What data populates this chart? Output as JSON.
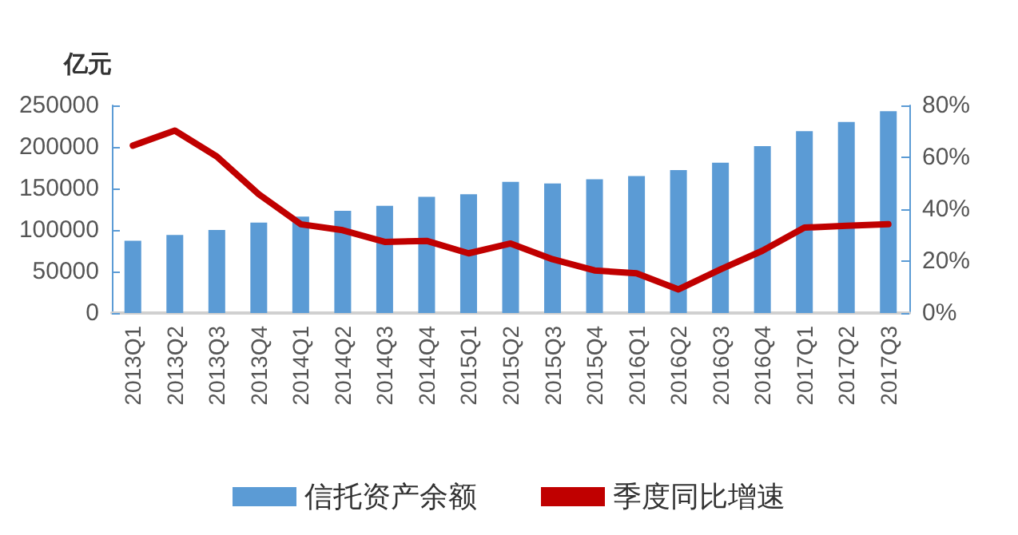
{
  "chart_data": {
    "type": "bar",
    "ylabel": "亿元",
    "categories": [
      "2013Q1",
      "2013Q2",
      "2013Q3",
      "2013Q4",
      "2014Q1",
      "2014Q2",
      "2014Q3",
      "2014Q4",
      "2015Q1",
      "2015Q2",
      "2015Q3",
      "2015Q4",
      "2016Q1",
      "2016Q2",
      "2016Q3",
      "2016Q4",
      "2017Q1",
      "2017Q2",
      "2017Q3"
    ],
    "series": [
      {
        "name": "信托资产余额",
        "color": "#5b9bd5",
        "values": [
          87000,
          94000,
          100000,
          109000,
          116000,
          123000,
          129000,
          140000,
          143000,
          158000,
          156000,
          161000,
          165000,
          172000,
          181000,
          201000,
          219000,
          230000,
          243000
        ]
      },
      {
        "name": "季度同比增速",
        "type": "line",
        "axis": "y2",
        "color": "#c00000",
        "values": [
          64.5,
          70.3,
          60.3,
          45.8,
          34.2,
          31.9,
          27.4,
          27.8,
          23.0,
          26.8,
          20.7,
          16.4,
          15.3,
          9.1,
          16.8,
          24.0,
          32.9,
          33.6,
          34.2
        ]
      }
    ],
    "ylim": [
      0,
      250000
    ],
    "yticks": [
      0,
      50000,
      100000,
      150000,
      200000,
      250000
    ],
    "y2lim": [
      0,
      80
    ],
    "y2ticks": [
      {
        "value": 0,
        "label": "0%"
      },
      {
        "value": 20,
        "label": "20%"
      },
      {
        "value": 40,
        "label": "40%"
      },
      {
        "value": 60,
        "label": "60%"
      },
      {
        "value": 80,
        "label": "80%"
      }
    ],
    "grid": false,
    "legend": "bottom",
    "marker": "none",
    "line_style": "solid"
  }
}
